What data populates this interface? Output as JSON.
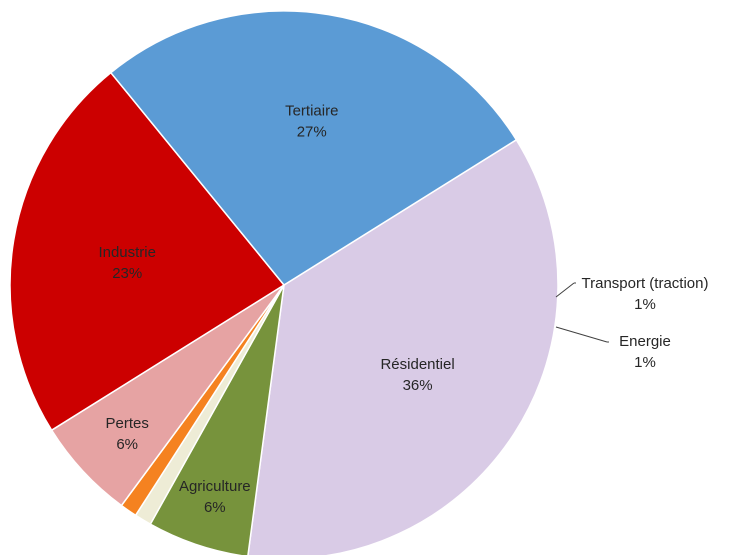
{
  "chart_data": {
    "type": "pie",
    "slices": [
      {
        "label": "Résidentiel",
        "percent_label": "36%",
        "value": 36,
        "color": "#d9cbe6"
      },
      {
        "label": "Agriculture",
        "percent_label": "6%",
        "value": 6,
        "color": "#77933c"
      },
      {
        "label": "Transport (traction)",
        "percent_label": "1%",
        "value": 1,
        "color": "#eeecd6",
        "label_outside": true
      },
      {
        "label": "Energie",
        "percent_label": "1%",
        "value": 1,
        "color": "#f58220",
        "label_outside": true
      },
      {
        "label": "Pertes",
        "percent_label": "6%",
        "value": 6,
        "color": "#e6a3a3"
      },
      {
        "label": "Industrie",
        "percent_label": "23%",
        "value": 23,
        "color": "#cc0000"
      },
      {
        "label": "Tertiaire",
        "percent_label": "27%",
        "value": 27,
        "color": "#5b9bd5"
      }
    ],
    "title_fragment_color": "#2e9bd6",
    "legend": "none"
  }
}
